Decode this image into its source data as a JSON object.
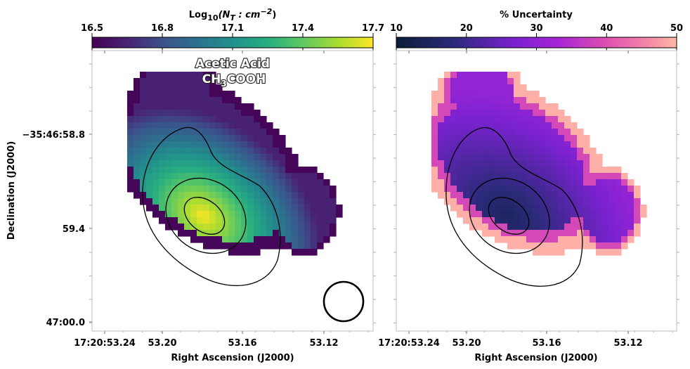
{
  "chart_data": [
    {
      "type": "heatmap",
      "panel": "left",
      "title_line1": "Acetic Acid",
      "title_formula": {
        "prefix": "CH",
        "subscript": "3",
        "suffix": "COOH"
      },
      "colormap": "viridis",
      "colorbar": {
        "title_prefix": "Log",
        "title_sub": "10",
        "title_body": "(N",
        "title_body_sub": "T",
        "title_body2": " : cm",
        "title_sup": "−2",
        "title_close": ")",
        "min": 16.5,
        "max": 17.7,
        "ticks": [
          "16.5",
          "16.8",
          "17.1",
          "17.4",
          "17.7"
        ]
      },
      "xlabel": "Right Ascension (J2000)",
      "ylabel": "Declination (J2000)",
      "xticks": [
        "17:20:53.24",
        "53.20",
        "53.16",
        "53.12"
      ],
      "yticks": [
        "-35:46:58.8",
        "59.4",
        "47:00.0"
      ],
      "beam": "circle-bottom-right",
      "peak_value": 17.65,
      "contour_levels": 3
    },
    {
      "type": "heatmap",
      "panel": "right",
      "colormap": "magma",
      "colorbar": {
        "title": "% Uncertainty",
        "min": 10,
        "max": 50,
        "ticks": [
          "10",
          "20",
          "30",
          "40",
          "50"
        ]
      },
      "xlabel": "Right Ascension (J2000)",
      "xticks": [
        "17:20:53.24",
        "53.20",
        "53.16",
        "53.12"
      ],
      "min_value": 16,
      "contour_levels": 3
    }
  ]
}
